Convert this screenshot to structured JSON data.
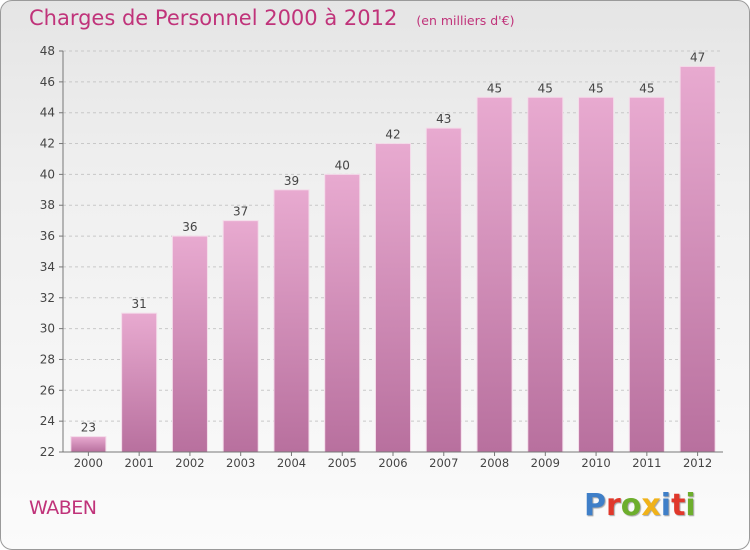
{
  "title": "Charges de Personnel 2000 à 2012",
  "subtitle": "(en milliers d'€)",
  "place": "WABEN",
  "brand": {
    "text": "Proxiti",
    "letter_colors": [
      "#3f7fc8",
      "#e0382b",
      "#6dae2c",
      "#f0b21a",
      "#3f7fc8",
      "#e0382b",
      "#6dae2c"
    ]
  },
  "colors": {
    "bar_top": "#e8aad0",
    "bar_bottom": "#b8709e",
    "title": "#c0337a"
  },
  "chart_data": {
    "type": "bar",
    "categories": [
      "2000",
      "2001",
      "2002",
      "2003",
      "2004",
      "2005",
      "2006",
      "2007",
      "2008",
      "2009",
      "2010",
      "2011",
      "2012"
    ],
    "values": [
      23,
      31,
      36,
      37,
      39,
      40,
      42,
      43,
      45,
      45,
      45,
      45,
      47
    ],
    "ylim": [
      22,
      48
    ],
    "yticks": [
      22,
      24,
      26,
      28,
      30,
      32,
      34,
      36,
      38,
      40,
      42,
      44,
      46,
      48
    ],
    "grid": "horizontal dashed",
    "xlabel": "",
    "ylabel": ""
  }
}
